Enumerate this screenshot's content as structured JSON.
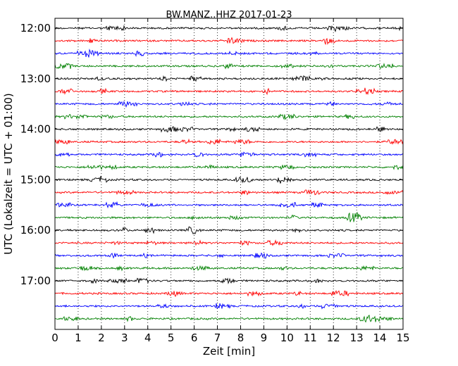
{
  "chart_data": {
    "type": "line",
    "title": "BW.MANZ..HHZ 2017-01-23",
    "xlabel": "Zeit  [min]",
    "ylabel": "UTC (Lokalzeit = UTC + 01:00)",
    "xlim": [
      0,
      15
    ],
    "x_ticks": [
      0,
      1,
      2,
      3,
      4,
      5,
      6,
      7,
      8,
      9,
      10,
      11,
      12,
      13,
      14,
      15
    ],
    "x_tick_labels": [
      "0",
      "1",
      "2",
      "3",
      "4",
      "5",
      "6",
      "7",
      "8",
      "9",
      "10",
      "11",
      "12",
      "13",
      "14",
      "15"
    ],
    "y_tick_labels": [
      "12:00",
      "13:00",
      "14:00",
      "15:00",
      "16:00",
      "17:00"
    ],
    "vertical_grid": "dotted",
    "trace_colors": [
      "#000000",
      "#ff0000",
      "#0000ff",
      "#008000"
    ],
    "series": [
      {
        "start": "12:00",
        "color": "#000000"
      },
      {
        "start": "12:15",
        "color": "#ff0000"
      },
      {
        "start": "12:30",
        "color": "#0000ff"
      },
      {
        "start": "12:45",
        "color": "#008000"
      },
      {
        "start": "13:00",
        "color": "#000000"
      },
      {
        "start": "13:15",
        "color": "#ff0000"
      },
      {
        "start": "13:30",
        "color": "#0000ff"
      },
      {
        "start": "13:45",
        "color": "#008000"
      },
      {
        "start": "14:00",
        "color": "#000000"
      },
      {
        "start": "14:15",
        "color": "#ff0000"
      },
      {
        "start": "14:30",
        "color": "#0000ff"
      },
      {
        "start": "14:45",
        "color": "#008000"
      },
      {
        "start": "15:00",
        "color": "#000000"
      },
      {
        "start": "15:15",
        "color": "#ff0000"
      },
      {
        "start": "15:30",
        "color": "#0000ff"
      },
      {
        "start": "15:45",
        "color": "#008000"
      },
      {
        "start": "16:00",
        "color": "#000000"
      },
      {
        "start": "16:15",
        "color": "#ff0000"
      },
      {
        "start": "16:30",
        "color": "#0000ff"
      },
      {
        "start": "16:45",
        "color": "#008000"
      },
      {
        "start": "17:00",
        "color": "#000000"
      },
      {
        "start": "17:15",
        "color": "#ff0000"
      },
      {
        "start": "17:30",
        "color": "#0000ff"
      },
      {
        "start": "17:45",
        "color": "#008000"
      }
    ]
  }
}
